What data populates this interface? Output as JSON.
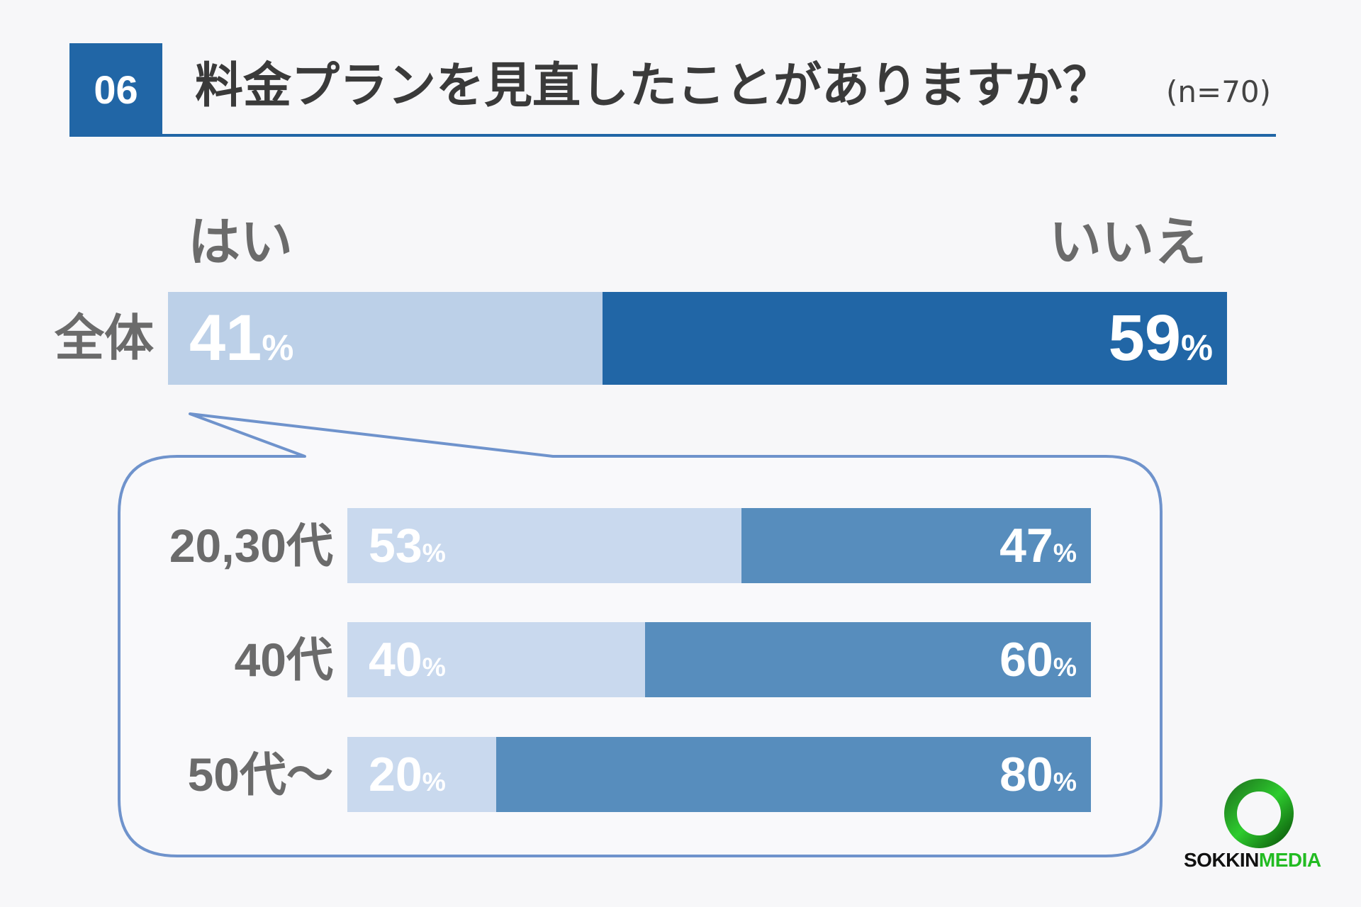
{
  "header": {
    "number": "06",
    "title": "料金プランを見直したことがありますか？",
    "sample": "(n=70)"
  },
  "colors": {
    "accent": "#2166a6",
    "overall_yes": "#bcd0e8",
    "overall_no": "#2166a6",
    "age_yes": "#c9d9ee",
    "age_no": "#578dbd",
    "callout_border": "#6f93cc",
    "label_gray": "#6b6b6b"
  },
  "chart_data": {
    "type": "bar",
    "stacked": true,
    "orientation": "horizontal",
    "series_labels": [
      "はい",
      "いいえ"
    ],
    "unit": "%",
    "categories": [
      "全体",
      "20,30代",
      "40代",
      "50代～"
    ],
    "series": [
      {
        "name": "はい",
        "values": [
          41,
          53,
          40,
          20
        ]
      },
      {
        "name": "いいえ",
        "values": [
          59,
          47,
          60,
          80
        ]
      }
    ],
    "xlim": [
      0,
      100
    ]
  },
  "logo": {
    "text_primary": "SOKKIN",
    "text_secondary": "MEDIA",
    "icon": "green-ring-icon"
  }
}
